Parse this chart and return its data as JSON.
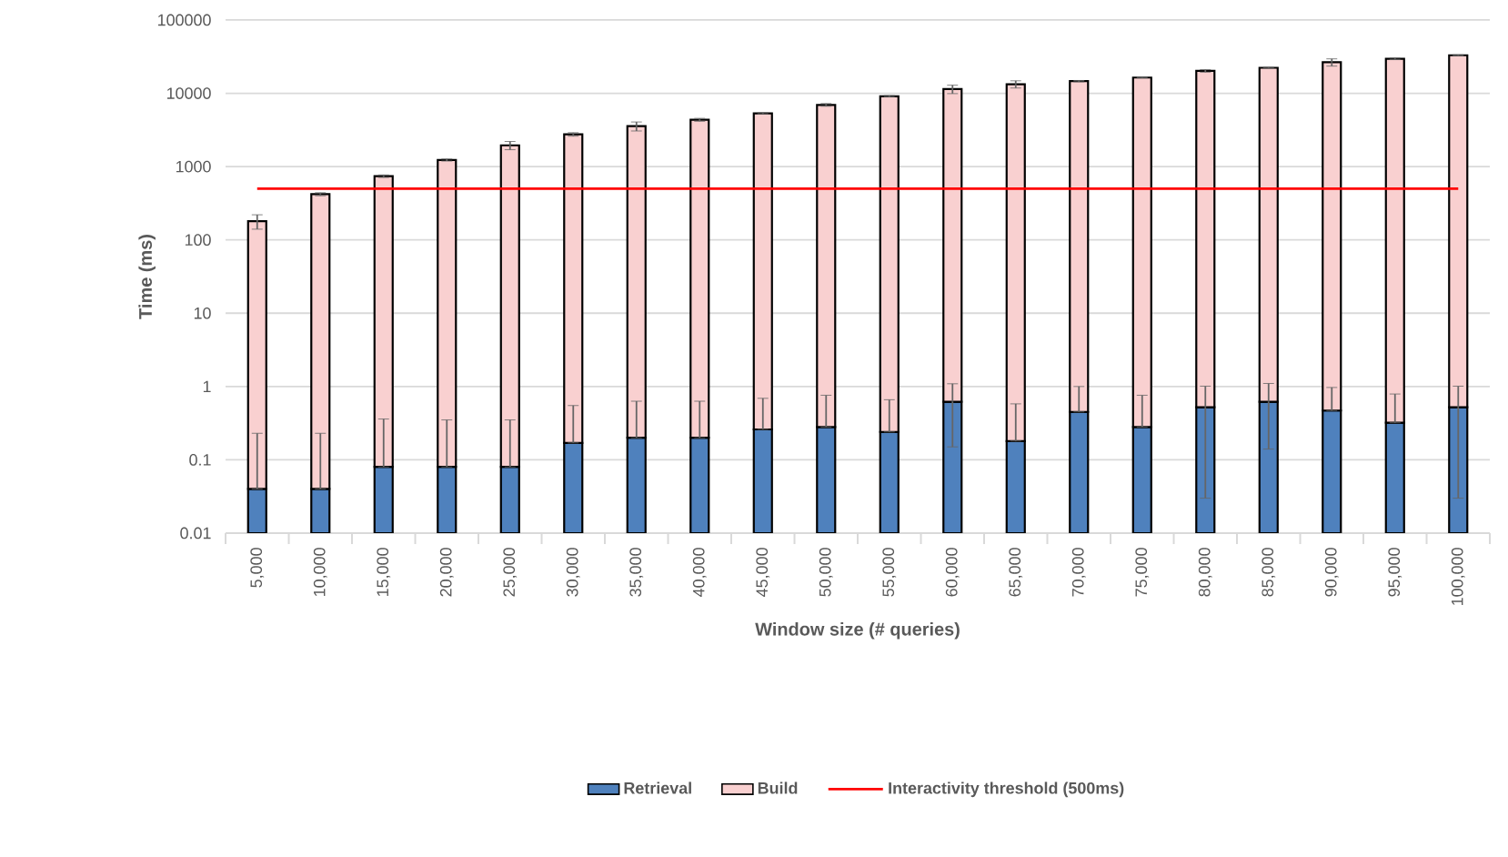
{
  "chart_data": {
    "type": "bar",
    "stacked": true,
    "xlabel": "Window size (# queries)",
    "ylabel": "Time (ms)",
    "categories": [
      "5,000",
      "10,000",
      "15,000",
      "20,000",
      "25,000",
      "30,000",
      "35,000",
      "40,000",
      "45,000",
      "50,000",
      "55,000",
      "60,000",
      "65,000",
      "70,000",
      "75,000",
      "80,000",
      "85,000",
      "90,000",
      "95,000",
      "100,000"
    ],
    "series": [
      {
        "name": "Retrieval",
        "color": "#4f81bd",
        "values": [
          0.04,
          0.04,
          0.08,
          0.08,
          0.08,
          0.17,
          0.2,
          0.2,
          0.26,
          0.28,
          0.24,
          0.62,
          0.18,
          0.45,
          0.28,
          0.52,
          0.62,
          0.47,
          0.32,
          0.52
        ],
        "errors": [
          0.19,
          0.19,
          0.28,
          0.27,
          0.27,
          0.38,
          0.43,
          0.43,
          0.43,
          0.48,
          0.42,
          0.47,
          0.4,
          0.55,
          0.48,
          0.49,
          0.48,
          0.5,
          0.47,
          0.49
        ]
      },
      {
        "name": "Build",
        "color": "#f9d0d0",
        "values": [
          180,
          420,
          740,
          1230,
          1950,
          2750,
          3560,
          4350,
          5330,
          6950,
          9100,
          11400,
          13300,
          14650,
          16400,
          20200,
          22300,
          26500,
          29500,
          33000
        ],
        "errors": [
          40,
          20,
          30,
          40,
          250,
          150,
          500,
          200,
          100,
          300,
          200,
          1500,
          1500,
          300,
          200,
          800,
          300,
          3000,
          700,
          500
        ]
      }
    ],
    "ylim": [
      0.01,
      100000
    ],
    "yticks": [
      0.01,
      0.1,
      1,
      10,
      100,
      1000,
      10000,
      100000
    ],
    "log": "y",
    "grid": "y",
    "legend": "bottom",
    "ref_lines": [
      {
        "axis": "y",
        "value": 500,
        "label": "Interactivity threshold (500ms)",
        "color": "#ff0000"
      }
    ]
  }
}
